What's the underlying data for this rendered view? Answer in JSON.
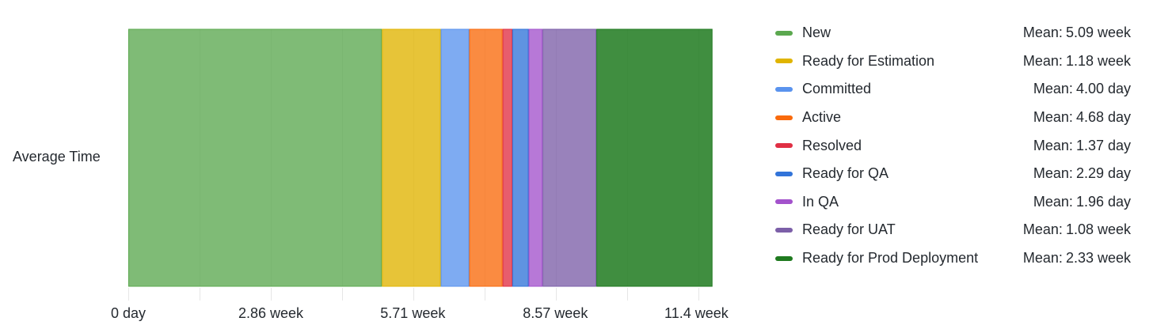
{
  "chart_data": {
    "type": "bar",
    "orientation": "horizontal",
    "stacked": true,
    "categories": [
      "Average Time"
    ],
    "xlim": [
      0,
      11.95
    ],
    "x_unit": "week",
    "x_ticks": [
      {
        "value": 0,
        "label": "0 day"
      },
      {
        "value": 2.86,
        "label": "2.86 week"
      },
      {
        "value": 5.71,
        "label": "5.71 week"
      },
      {
        "value": 8.57,
        "label": "8.57 week"
      },
      {
        "value": 11.4,
        "label": "11.4 week"
      }
    ],
    "grid": true,
    "legend_position": "right",
    "series": [
      {
        "name": "New",
        "value_weeks": 5.09,
        "mean_label": "5.09 week",
        "color": "#5ba84f"
      },
      {
        "name": "Ready for Estimation",
        "value_weeks": 1.18,
        "mean_label": "1.18 week",
        "color": "#e0b400"
      },
      {
        "name": "Committed",
        "value_weeks": 0.571,
        "mean_label": "4.00 day",
        "color": "#5a93ee"
      },
      {
        "name": "Active",
        "value_weeks": 0.669,
        "mean_label": "4.68 day",
        "color": "#f96a0c"
      },
      {
        "name": "Resolved",
        "value_weeks": 0.196,
        "mean_label": "1.37 day",
        "color": "#e02f44"
      },
      {
        "name": "Ready for QA",
        "value_weeks": 0.327,
        "mean_label": "2.29 day",
        "color": "#3274d9"
      },
      {
        "name": "In QA",
        "value_weeks": 0.28,
        "mean_label": "1.96 day",
        "color": "#a352cc"
      },
      {
        "name": "Ready for UAT",
        "value_weeks": 1.08,
        "mean_label": "1.08 week",
        "color": "#7c5fa8"
      },
      {
        "name": "Ready for Prod Deployment",
        "value_weeks": 2.33,
        "mean_label": "2.33 week",
        "color": "#1f7a1f"
      }
    ]
  },
  "legend": {
    "mean_prefix": "Mean:"
  }
}
